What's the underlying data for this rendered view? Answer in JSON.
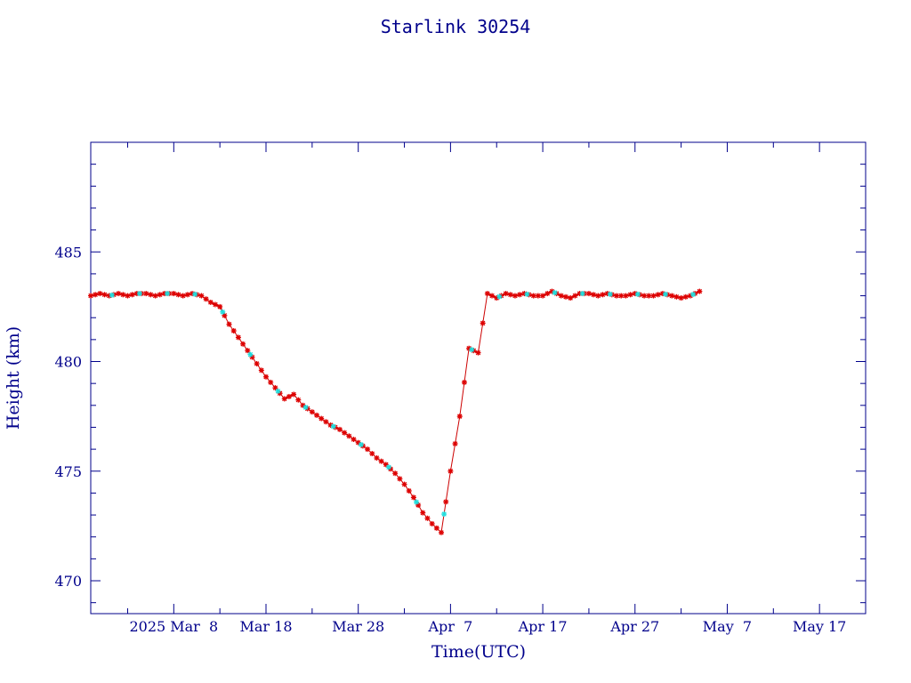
{
  "chart_data": {
    "type": "line",
    "title": "Starlink 30254",
    "xlabel": "Time(UTC)",
    "ylabel": "Height (km)",
    "x_tick_labels": [
      "2025 Mar  8",
      "Mar 18",
      "Mar 28",
      "Apr  7",
      "Apr 17",
      "Apr 27",
      "May  7",
      "May 17"
    ],
    "x_tick_dates": [
      "2025-03-08",
      "2025-03-18",
      "2025-03-28",
      "2025-04-07",
      "2025-04-17",
      "2025-04-27",
      "2025-05-07",
      "2025-05-17"
    ],
    "xlim": [
      "2025-02-27",
      "2025-05-22"
    ],
    "ylim": [
      468.5,
      490
    ],
    "y_ticks": [
      470,
      475,
      480,
      485
    ],
    "grid": false,
    "colors": {
      "axes": "#00008b",
      "line": "#cc0000",
      "marker_primary": "#dd0000",
      "marker_secondary": "#22dddd"
    },
    "series": [
      {
        "x": [
          "2025-02-27",
          "2025-02-28",
          "2025-03-01",
          "2025-03-02",
          "2025-03-03",
          "2025-03-04",
          "2025-03-05",
          "2025-03-06",
          "2025-03-07",
          "2025-03-08",
          "2025-03-09",
          "2025-03-10",
          "2025-03-11",
          "2025-03-12",
          "2025-03-13",
          "2025-03-14",
          "2025-03-15",
          "2025-03-16",
          "2025-03-17",
          "2025-03-18",
          "2025-03-19",
          "2025-03-20",
          "2025-03-21",
          "2025-03-22",
          "2025-03-23",
          "2025-03-24",
          "2025-03-25",
          "2025-03-26",
          "2025-03-27",
          "2025-03-28",
          "2025-03-29",
          "2025-03-30",
          "2025-03-31",
          "2025-04-01",
          "2025-04-02",
          "2025-04-03",
          "2025-04-04",
          "2025-04-05",
          "2025-04-06",
          "2025-04-07",
          "2025-04-08",
          "2025-04-09",
          "2025-04-10",
          "2025-04-11",
          "2025-04-12",
          "2025-04-13",
          "2025-04-14",
          "2025-04-15",
          "2025-04-16",
          "2025-04-17",
          "2025-04-18",
          "2025-04-19",
          "2025-04-20",
          "2025-04-21",
          "2025-04-22",
          "2025-04-23",
          "2025-04-24",
          "2025-04-25",
          "2025-04-26",
          "2025-04-27",
          "2025-04-28",
          "2025-04-29",
          "2025-04-30",
          "2025-05-01",
          "2025-05-02",
          "2025-05-03",
          "2025-05-04"
        ],
        "y": [
          483.0,
          483.1,
          483.0,
          483.1,
          483.0,
          483.1,
          483.1,
          483.0,
          483.1,
          483.1,
          483.0,
          483.1,
          483.0,
          482.7,
          482.5,
          481.7,
          481.1,
          480.5,
          479.9,
          479.3,
          478.8,
          478.3,
          478.5,
          478.0,
          477.7,
          477.4,
          477.1,
          476.9,
          476.6,
          476.3,
          476.0,
          475.6,
          475.3,
          474.9,
          474.4,
          473.8,
          473.1,
          472.6,
          472.2,
          475.0,
          477.5,
          480.6,
          480.4,
          483.1,
          482.9,
          483.1,
          483.0,
          483.1,
          483.0,
          483.0,
          483.2,
          483.0,
          482.9,
          483.1,
          483.1,
          483.0,
          483.1,
          483.0,
          483.0,
          483.1,
          483.0,
          483.0,
          483.1,
          483.0,
          482.9,
          483.0,
          483.2
        ]
      }
    ]
  }
}
